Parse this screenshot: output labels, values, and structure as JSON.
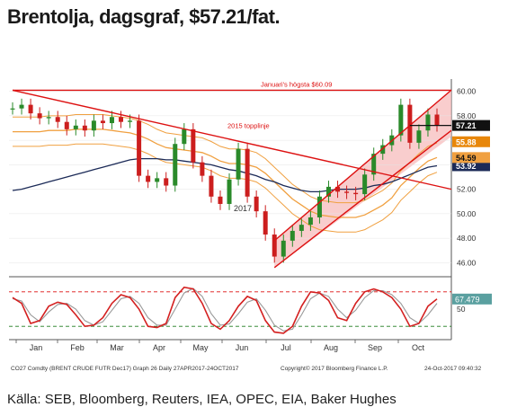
{
  "title": "Brentolja, dagsgraf, $57.21/fat.",
  "source": "Källa: SEB, Bloomberg, Reuters, IEA, OPEC, EIA, Baker Hughes",
  "footer": {
    "left": "CO27 Comdty (BRENT CRUDE FUTR  Dec17)  Graph 26  Daily 27APR2017-24OCT2017",
    "center": "Copyright© 2017 Bloomberg Finance L.P.",
    "right": "24-Oct-2017 09:40:32"
  },
  "annotations": {
    "jan_high": "Januari's högsta $60.09",
    "topline": "2015 topplinje"
  },
  "colors": {
    "price_up": "#2a8a2a",
    "price_down": "#cc1e1e",
    "ma_orange": "#f0a040",
    "ma_dark": "#1b2a57",
    "trend_red": "#dd1111",
    "channel_fill": "#f7bcbc",
    "stoch_k": "#d42020",
    "stoch_d": "#999999"
  },
  "chart_data": [
    {
      "type": "line",
      "name": "price",
      "x": [
        "2016-12-01",
        "2016-12-08",
        "2016-12-15",
        "2016-12-22",
        "2016-12-29",
        "2017-01-05",
        "2017-01-12",
        "2017-01-19",
        "2017-01-26",
        "2017-02-02",
        "2017-02-09",
        "2017-02-16",
        "2017-02-23",
        "2017-03-02",
        "2017-03-09",
        "2017-03-16",
        "2017-03-23",
        "2017-03-30",
        "2017-04-06",
        "2017-04-13",
        "2017-04-20",
        "2017-04-27",
        "2017-05-04",
        "2017-05-11",
        "2017-05-18",
        "2017-05-25",
        "2017-06-01",
        "2017-06-08",
        "2017-06-15",
        "2017-06-22",
        "2017-06-29",
        "2017-07-06",
        "2017-07-13",
        "2017-07-20",
        "2017-07-27",
        "2017-08-03",
        "2017-08-10",
        "2017-08-17",
        "2017-08-24",
        "2017-08-31",
        "2017-09-07",
        "2017-09-14",
        "2017-09-21",
        "2017-09-28",
        "2017-10-05",
        "2017-10-12",
        "2017-10-19",
        "2017-10-24"
      ],
      "series": [
        {
          "values": [
            58.6,
            58.9,
            58.2,
            57.8,
            57.9,
            57.5,
            56.9,
            57.2,
            56.8,
            57.6,
            57.4,
            57.9,
            57.5,
            57.6,
            53.1,
            52.6,
            52.9,
            52.3,
            55.7,
            56.9,
            54.2,
            53.1,
            51.4,
            50.8,
            52.8,
            55.3,
            51.4,
            50.2,
            48.3,
            46.5,
            47.8,
            48.6,
            49.1,
            49.7,
            51.4,
            52.2,
            51.8,
            51.7,
            51.6,
            53.2,
            54.9,
            55.6,
            56.4,
            58.9,
            55.8,
            56.8,
            58.1,
            57.21
          ]
        },
        {
          "values": [
            56.7,
            56.7,
            56.7,
            56.7,
            56.8,
            56.8,
            56.8,
            56.9,
            56.9,
            56.9,
            56.9,
            56.8,
            56.7,
            56.6,
            56.4,
            56.1,
            55.7,
            55.4,
            55.3,
            55.2,
            55.1,
            55.0,
            54.7,
            54.3,
            54.1,
            54.1,
            54.0,
            53.8,
            53.3,
            52.6,
            51.9,
            51.2,
            50.7,
            50.2,
            49.9,
            49.8,
            49.7,
            49.7,
            49.7,
            49.9,
            50.3,
            50.7,
            51.3,
            52.3,
            53.0,
            53.7,
            54.3,
            54.59
          ]
        },
        {
          "values": [
            51.9,
            52.0,
            52.2,
            52.4,
            52.6,
            52.8,
            53.0,
            53.2,
            53.4,
            53.6,
            53.8,
            54.0,
            54.2,
            54.4,
            54.5,
            54.5,
            54.5,
            54.4,
            54.4,
            54.3,
            54.2,
            54.1,
            54.0,
            53.8,
            53.6,
            53.5,
            53.3,
            53.1,
            52.8,
            52.6,
            52.3,
            52.1,
            51.9,
            51.8,
            51.8,
            51.9,
            52.0,
            52.0,
            52.0,
            52.1,
            52.3,
            52.4,
            52.6,
            52.9,
            53.2,
            53.5,
            53.8,
            53.92
          ]
        }
      ],
      "yticks": [
        46,
        48,
        50,
        52,
        54,
        56,
        58,
        60
      ],
      "ylim": [
        45,
        61
      ],
      "last_labels": [
        "57.21",
        "54.59",
        "53.92",
        "55.88"
      ]
    },
    {
      "type": "line",
      "name": "stochastic",
      "xlabels": [
        "Jan",
        "Feb",
        "Mar",
        "Apr",
        "May",
        "Jun",
        "Jul",
        "Aug",
        "Sep",
        "Oct"
      ],
      "year_label": "2017",
      "series": [
        {
          "values": [
            70,
            60,
            25,
            30,
            55,
            62,
            58,
            40,
            20,
            22,
            35,
            60,
            75,
            70,
            50,
            20,
            18,
            25,
            70,
            88,
            85,
            60,
            25,
            15,
            30,
            55,
            72,
            65,
            30,
            10,
            8,
            20,
            55,
            80,
            78,
            65,
            35,
            30,
            60,
            80,
            85,
            80,
            70,
            50,
            20,
            25,
            55,
            67.479
          ]
        },
        {
          "values": [
            68,
            64,
            40,
            28,
            45,
            58,
            60,
            50,
            30,
            22,
            28,
            48,
            68,
            72,
            60,
            35,
            22,
            22,
            50,
            78,
            86,
            72,
            42,
            22,
            24,
            42,
            62,
            68,
            48,
            22,
            12,
            15,
            40,
            68,
            78,
            72,
            50,
            35,
            48,
            70,
            82,
            82,
            75,
            60,
            35,
            25,
            40,
            60
          ]
        }
      ],
      "yticks": [
        50
      ],
      "ylim": [
        0,
        100
      ],
      "last_label": "67.479",
      "levels": [
        80,
        20
      ]
    }
  ]
}
